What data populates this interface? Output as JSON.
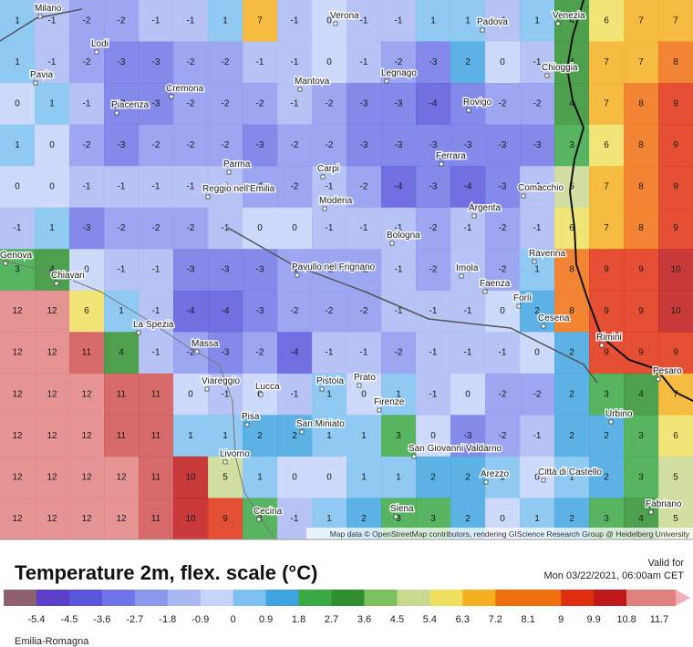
{
  "map": {
    "grid": [
      [
        1,
        -1,
        -2,
        -2,
        -1,
        -1,
        1,
        7,
        -1,
        0,
        -1,
        -1,
        1,
        1,
        -1,
        1,
        4,
        6,
        7,
        7
      ],
      [
        1,
        -1,
        -2,
        -3,
        -3,
        -2,
        -2,
        -1,
        -1,
        0,
        -1,
        -2,
        -3,
        2,
        0,
        -1,
        4,
        7,
        7,
        8
      ],
      [
        0,
        1,
        -1,
        -3,
        -3,
        -2,
        -2,
        -2,
        -1,
        -2,
        -3,
        -3,
        -4,
        -3,
        -2,
        -2,
        4,
        7,
        8,
        9
      ],
      [
        1,
        0,
        -2,
        -3,
        -2,
        -2,
        -2,
        -3,
        -2,
        -2,
        -3,
        -3,
        -3,
        -3,
        -3,
        -3,
        3,
        6,
        8,
        9
      ],
      [
        0,
        0,
        -1,
        -1,
        -1,
        -1,
        -1,
        -2,
        -2,
        -1,
        -2,
        -4,
        -3,
        -4,
        -3,
        -1,
        5,
        7,
        8,
        9
      ],
      [
        -1,
        1,
        -3,
        -2,
        -2,
        -2,
        -1,
        0,
        0,
        -1,
        -1,
        -1,
        -2,
        -1,
        -2,
        -1,
        6,
        7,
        8,
        9
      ],
      [
        3,
        4,
        0,
        -1,
        -1,
        -3,
        -3,
        -3,
        -2,
        -2,
        -2,
        -1,
        -2,
        -1,
        -2,
        1,
        8,
        9,
        9,
        10
      ],
      [
        12,
        12,
        6,
        1,
        -1,
        -4,
        -4,
        -3,
        -2,
        -2,
        -2,
        -1,
        -1,
        -1,
        0,
        2,
        8,
        9,
        9,
        10
      ],
      [
        12,
        12,
        11,
        4,
        -1,
        -2,
        -3,
        -2,
        -4,
        -1,
        -1,
        -2,
        -1,
        -1,
        -1,
        0,
        2,
        9,
        9,
        9
      ],
      [
        12,
        12,
        12,
        11,
        11,
        0,
        -1,
        0,
        -1,
        1,
        0,
        1,
        -1,
        0,
        -2,
        -2,
        2,
        3,
        4,
        7
      ],
      [
        12,
        12,
        12,
        11,
        11,
        1,
        1,
        2,
        2,
        1,
        1,
        3,
        0,
        -3,
        -2,
        -1,
        2,
        2,
        3,
        6
      ],
      [
        12,
        12,
        12,
        12,
        11,
        10,
        5,
        1,
        0,
        0,
        1,
        1,
        2,
        2,
        1,
        0,
        1,
        2,
        3,
        5
      ],
      [
        12,
        12,
        12,
        12,
        11,
        10,
        9,
        3,
        -1,
        1,
        2,
        3,
        3,
        2,
        0,
        1,
        2,
        3,
        4,
        5
      ]
    ],
    "cities": [
      "Milano",
      "Verona",
      "Padova",
      "Venezia",
      "Lodi",
      "Pavia",
      "Cremona",
      "Legnago",
      "Chioggia",
      "Mantova",
      "Rovigo",
      "Piacenza",
      "Ferrara",
      "Parma",
      "Carpi",
      "Comacchio",
      "Reggio nell'Emilia",
      "Modena",
      "Argenta",
      "Bologna",
      "Ravenna",
      "Genova",
      "Pavullo nel Frignano",
      "Imola",
      "Chiavari",
      "Faenza",
      "Forlì",
      "La Spezia",
      "Cesena",
      "Massa",
      "Rimini",
      "Pesaro",
      "Viareggio",
      "Lucca",
      "Pistoia",
      "Prato",
      "Firenze",
      "Urbino",
      "Pisa",
      "San Miniato",
      "San Giovanni Valdarno",
      "Livorno",
      "Arezzo",
      "Città di Castello",
      "Cecina",
      "Siena",
      "Fabriano"
    ],
    "attribution": "Map data © OpenStreetMap contributors, rendering GIScience Research Group @ Heidelberg University"
  },
  "footer": {
    "title": "Temperature 2m, flex. scale (°C)",
    "valid_label": "Valid for",
    "valid_time": "Mon 03/22/2021, 06:00am CET",
    "region": "Emilia-Romagna",
    "scale_ticks": [
      -5.4,
      -4.5,
      -3.6,
      -2.7,
      -1.8,
      -0.9,
      0,
      0.9,
      1.8,
      2.7,
      3.6,
      4.5,
      5.4,
      6.3,
      7.2,
      8.1,
      9,
      9.9,
      10.8,
      11.7
    ]
  }
}
